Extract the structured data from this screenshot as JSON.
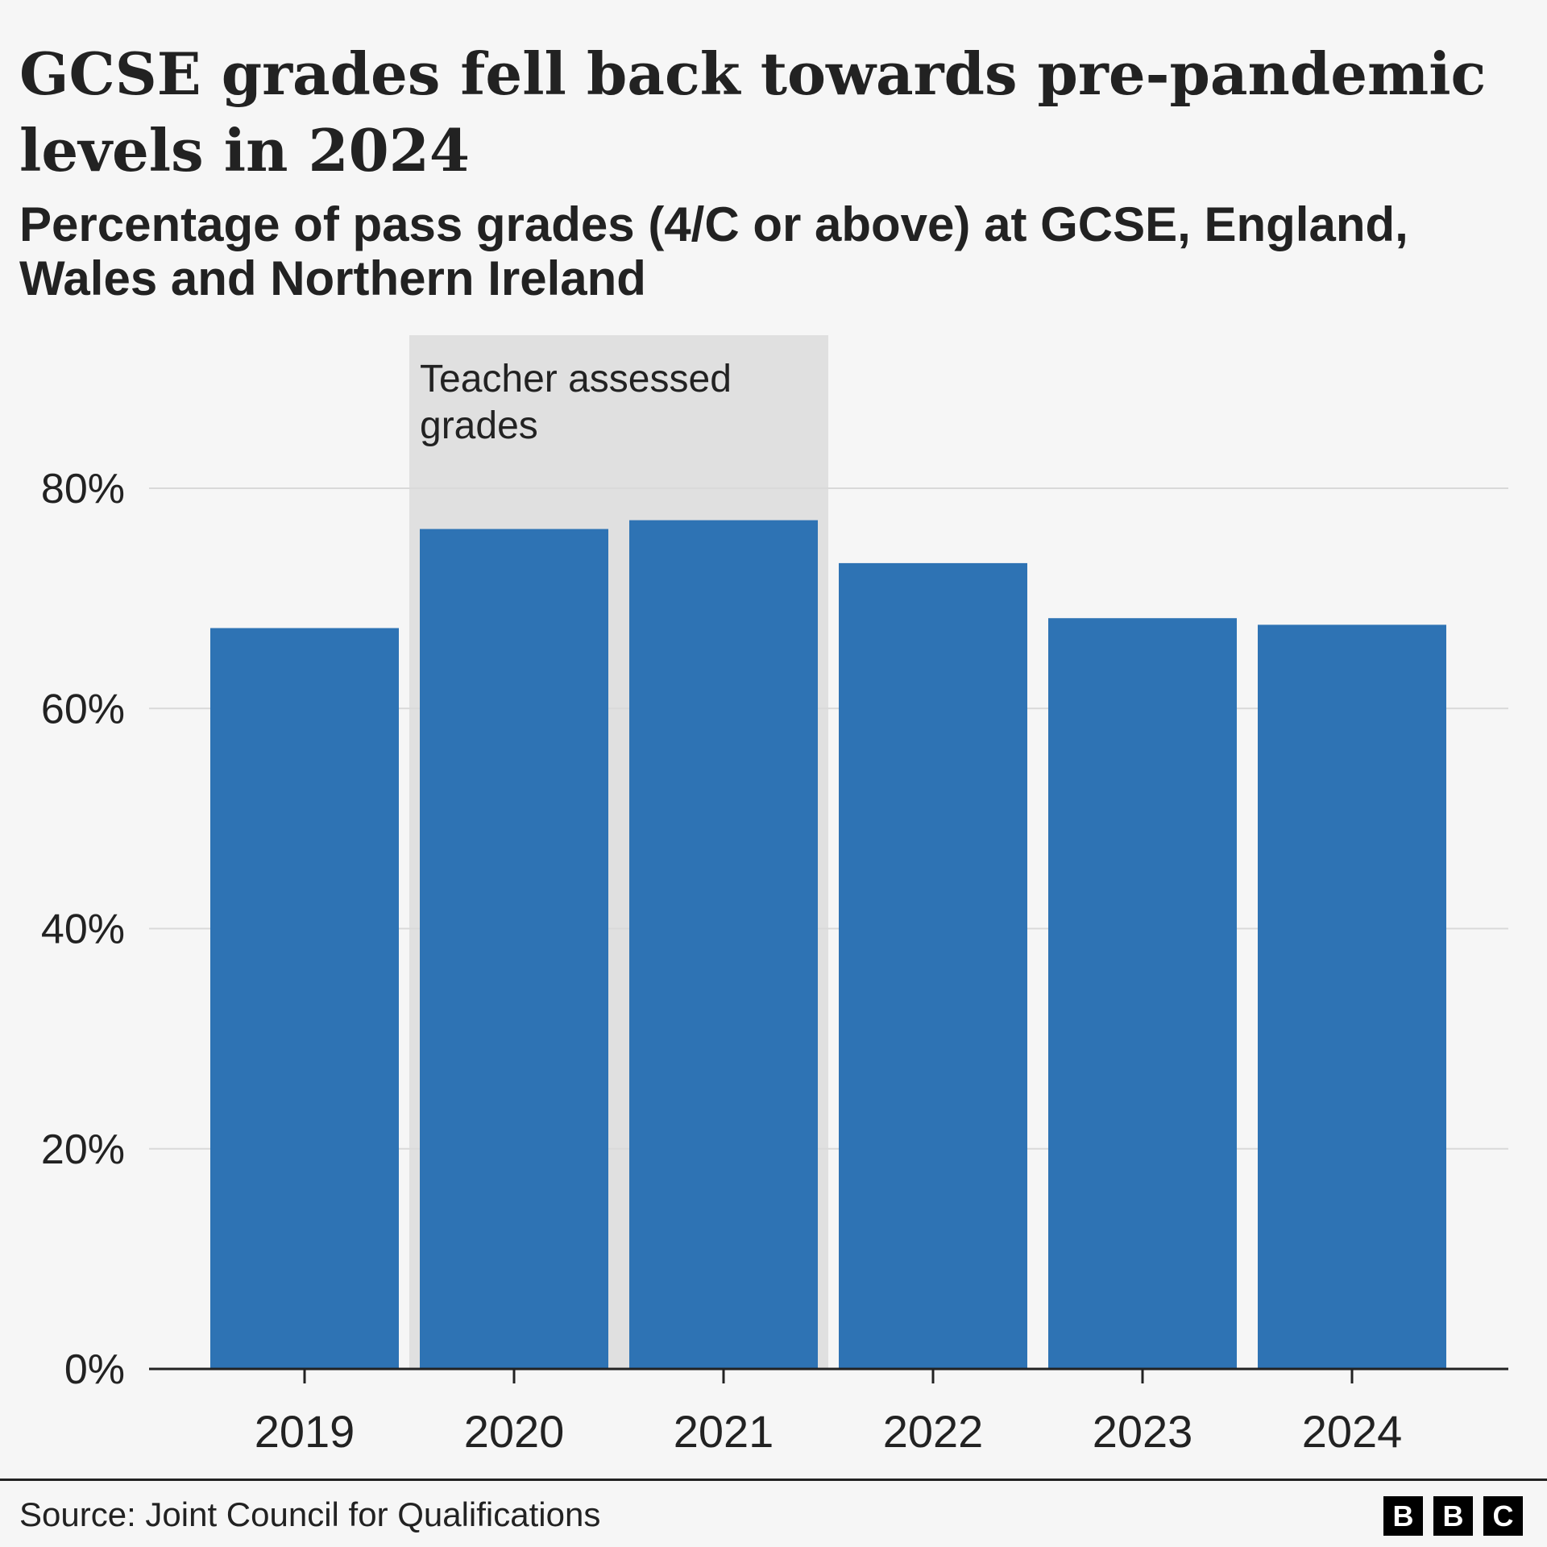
{
  "title": "GCSE grades fell back towards pre-pandemic levels in 2024",
  "subtitle": "Percentage of pass grades (4/C or above) at GCSE, England, Wales and Northern Ireland",
  "source": "Source: Joint Council for Qualifications",
  "logo": [
    "B",
    "B",
    "C"
  ],
  "colors": {
    "bar": "#2e73b4",
    "shade": "#e0e0e0",
    "grid": "#d9d9d9",
    "axis": "#222222",
    "background": "#f6f6f6"
  },
  "chart_data": {
    "type": "bar",
    "categories": [
      "2019",
      "2020",
      "2021",
      "2022",
      "2023",
      "2024"
    ],
    "values": [
      67.3,
      76.3,
      77.1,
      73.2,
      68.2,
      67.6
    ],
    "ylim": [
      0,
      80
    ],
    "yticks": [
      0,
      20,
      40,
      60,
      80
    ],
    "ytick_labels": [
      "0%",
      "20%",
      "40%",
      "60%",
      "80%"
    ],
    "grid": true,
    "annotation": {
      "text_lines": [
        "Teacher assessed",
        "grades"
      ],
      "categories": [
        "2020",
        "2021"
      ]
    }
  }
}
